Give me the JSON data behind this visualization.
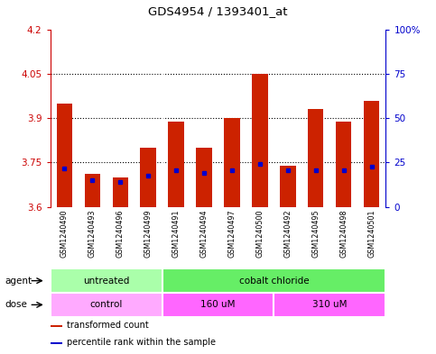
{
  "title": "GDS4954 / 1393401_at",
  "samples": [
    "GSM1240490",
    "GSM1240493",
    "GSM1240496",
    "GSM1240499",
    "GSM1240491",
    "GSM1240494",
    "GSM1240497",
    "GSM1240500",
    "GSM1240492",
    "GSM1240495",
    "GSM1240498",
    "GSM1240501"
  ],
  "transformed_count": [
    3.95,
    3.71,
    3.7,
    3.8,
    3.89,
    3.8,
    3.9,
    4.05,
    3.74,
    3.93,
    3.89,
    3.96
  ],
  "percentile_rank_val": [
    3.73,
    3.69,
    3.685,
    3.705,
    3.725,
    3.715,
    3.725,
    3.745,
    3.725,
    3.725,
    3.725,
    3.735
  ],
  "bar_bottom": 3.6,
  "ylim_left": [
    3.6,
    4.2
  ],
  "ylim_right": [
    0,
    100
  ],
  "yticks_left": [
    3.6,
    3.75,
    3.9,
    4.05,
    4.2
  ],
  "yticks_right": [
    0,
    25,
    50,
    75,
    100
  ],
  "ytick_labels_left": [
    "3.6",
    "3.75",
    "3.9",
    "4.05",
    "4.2"
  ],
  "ytick_labels_right": [
    "0",
    "25",
    "50",
    "75",
    "100%"
  ],
  "hlines": [
    3.75,
    3.9,
    4.05
  ],
  "agent_groups": [
    {
      "label": "untreated",
      "start": 0,
      "end": 4,
      "color": "#AAFFAA"
    },
    {
      "label": "cobalt chloride",
      "start": 4,
      "end": 12,
      "color": "#66EE66"
    }
  ],
  "dose_groups": [
    {
      "label": "control",
      "start": 0,
      "end": 4,
      "color": "#FFAAFF"
    },
    {
      "label": "160 uM",
      "start": 4,
      "end": 8,
      "color": "#FF66FF"
    },
    {
      "label": "310 uM",
      "start": 8,
      "end": 12,
      "color": "#FF66FF"
    }
  ],
  "bar_color": "#CC2200",
  "percentile_color": "#0000CC",
  "bar_width": 0.55,
  "tick_label_color_left": "#CC0000",
  "tick_label_color_right": "#0000CC",
  "grid_color": "#000000",
  "bg_color": "#FFFFFF",
  "xtick_bg": "#C8C8C8",
  "legend_items": [
    {
      "label": "transformed count",
      "color": "#CC2200"
    },
    {
      "label": "percentile rank within the sample",
      "color": "#0000CC"
    }
  ],
  "group_separator_color": "#FFFFFF"
}
